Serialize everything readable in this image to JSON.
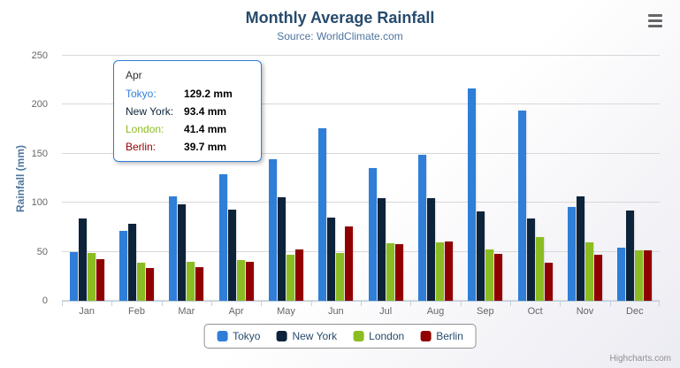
{
  "chart_data": {
    "type": "bar",
    "title": "Monthly Average Rainfall",
    "subtitle": "Source: WorldClimate.com",
    "categories": [
      "Jan",
      "Feb",
      "Mar",
      "Apr",
      "May",
      "Jun",
      "Jul",
      "Aug",
      "Sep",
      "Oct",
      "Nov",
      "Dec"
    ],
    "series": [
      {
        "name": "Tokyo",
        "color": "#2f7ed8",
        "values": [
          49.9,
          71.5,
          106.4,
          129.2,
          144.0,
          176.0,
          135.6,
          148.5,
          216.4,
          194.1,
          95.6,
          54.4
        ]
      },
      {
        "name": "New York",
        "color": "#0d233a",
        "values": [
          83.6,
          78.8,
          98.5,
          93.4,
          106.0,
          84.5,
          105.0,
          104.3,
          91.2,
          83.5,
          106.6,
          92.3
        ]
      },
      {
        "name": "London",
        "color": "#8bbc21",
        "values": [
          48.9,
          38.8,
          39.3,
          41.4,
          47.0,
          48.3,
          59.0,
          59.6,
          52.4,
          65.2,
          59.3,
          51.2
        ]
      },
      {
        "name": "Berlin",
        "color": "#910000",
        "values": [
          42.4,
          33.2,
          34.5,
          39.7,
          52.6,
          75.5,
          57.4,
          60.4,
          47.6,
          39.1,
          46.8,
          51.1
        ]
      }
    ],
    "xlabel": "",
    "ylabel": "Rainfall (mm)",
    "ylim": [
      0,
      250
    ],
    "yticks": [
      0,
      50,
      100,
      150,
      200,
      250
    ],
    "grid": true,
    "legend_position": "bottom"
  },
  "tooltip": {
    "header": "Apr",
    "border_color": "#2f7ed8",
    "rows": [
      {
        "label": "Tokyo:",
        "value": "129.2 mm",
        "color": "#2f7ed8"
      },
      {
        "label": "New York:",
        "value": "93.4 mm",
        "color": "#0d233a"
      },
      {
        "label": "London:",
        "value": "41.4 mm",
        "color": "#8bbc21"
      },
      {
        "label": "Berlin:",
        "value": "39.7 mm",
        "color": "#910000"
      }
    ]
  },
  "legend": {
    "items": [
      "Tokyo",
      "New York",
      "London",
      "Berlin"
    ]
  },
  "credits": {
    "text": "Highcharts.com"
  },
  "icons": {
    "menu": "hamburger-icon"
  },
  "colors": {
    "title": "#274b6d",
    "subtitle": "#4d759e",
    "axis_label": "#666666",
    "gridline": "#d8d8d8",
    "axis_line": "#C0D0E0"
  }
}
